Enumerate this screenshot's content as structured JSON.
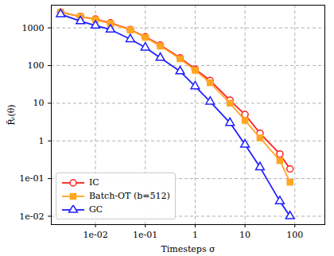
{
  "chart_data": {
    "type": "line",
    "x_label": "Timesteps σ",
    "y_label": "R̄ₜ(θ)",
    "log": true,
    "grid": true,
    "legend": "lower left",
    "xlim": [
      0.0013,
      400
    ],
    "ylim": [
      0.006,
      4000
    ],
    "xticks": [
      {
        "value": 0.01,
        "label": "1e-02"
      },
      {
        "value": 0.1,
        "label": "1e-01"
      },
      1,
      10,
      100
    ],
    "yticks": [
      {
        "value": 0.01,
        "label": "1e-02"
      },
      {
        "value": 0.1,
        "label": "1e-01"
      },
      1,
      10,
      100,
      1000
    ],
    "x": [
      0.002,
      0.005,
      0.01,
      0.02,
      0.05,
      0.1,
      0.2,
      0.5,
      1,
      2,
      5,
      10,
      20,
      50,
      80
    ],
    "series": [
      {
        "name": "IC",
        "color": "#ff1f1f",
        "marker": "circle",
        "values": [
          2600,
          2000,
          1700,
          1350,
          900,
          580,
          350,
          160,
          80,
          40,
          12,
          5,
          1.6,
          0.45,
          0.18
        ]
      },
      {
        "name": "Batch-OT (b=512)",
        "color": "#ffa621",
        "marker": "square",
        "values": [
          2600,
          2000,
          1650,
          1300,
          880,
          560,
          330,
          150,
          75,
          35,
          10,
          3.5,
          1.2,
          0.3,
          0.08
        ]
      },
      {
        "name": "GC",
        "color": "#1f1fff",
        "marker": "triangle",
        "values": [
          2300,
          1500,
          1150,
          900,
          500,
          300,
          160,
          70,
          28,
          11,
          3,
          0.8,
          0.2,
          0.025,
          0.01
        ]
      }
    ]
  }
}
